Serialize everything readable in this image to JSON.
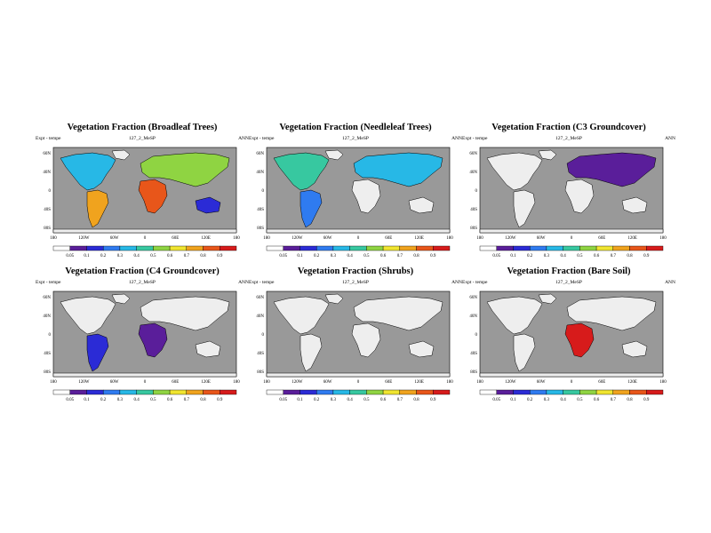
{
  "chart_data": [
    {
      "type": "heatmap",
      "title": "Vegetation Fraction (Broadleaf Trees)",
      "info_left": "Expt - tempe",
      "info_center": "127_2_MeSP",
      "info_right": "ANN",
      "lat_labels": [
        "60N",
        "40N",
        "0",
        "40S",
        "80S"
      ],
      "lon_labels": [
        "180",
        "120W",
        "60W",
        "0",
        "60E",
        "120E",
        "180"
      ],
      "colorbar_labels": [
        "0.05",
        "0.1",
        "0.2",
        "0.3",
        "0.4",
        "0.5",
        "0.6",
        "0.7",
        "0.8",
        "0.9"
      ]
    },
    {
      "type": "heatmap",
      "title": "Vegetation Fraction (Needleleaf Trees)",
      "info_left": "Expt - tempe",
      "info_center": "127_2_MeSP",
      "info_right": "ANN",
      "lat_labels": [
        "60N",
        "40N",
        "0",
        "40S",
        "80S"
      ],
      "lon_labels": [
        "180",
        "120W",
        "60W",
        "0",
        "60E",
        "120E",
        "180"
      ],
      "colorbar_labels": [
        "0.05",
        "0.1",
        "0.2",
        "0.3",
        "0.4",
        "0.5",
        "0.6",
        "0.7",
        "0.8",
        "0.9"
      ]
    },
    {
      "type": "heatmap",
      "title": "Vegetation Fraction (C3 Groundcover)",
      "info_left": "Expt - tempe",
      "info_center": "127_2_MeSP",
      "info_right": "ANN",
      "lat_labels": [
        "60N",
        "40N",
        "0",
        "40S",
        "80S"
      ],
      "lon_labels": [
        "180",
        "120W",
        "60W",
        "0",
        "60E",
        "120E",
        "180"
      ],
      "colorbar_labels": [
        "0.05",
        "0.1",
        "0.2",
        "0.3",
        "0.4",
        "0.5",
        "0.6",
        "0.7",
        "0.8",
        "0.9"
      ]
    },
    {
      "type": "heatmap",
      "title": "Vegetation Fraction (C4 Groundcover)",
      "info_left": "Expt - tempe",
      "info_center": "127_2_MeSP",
      "info_right": "ANN",
      "lat_labels": [
        "60N",
        "40N",
        "0",
        "40S",
        "80S"
      ],
      "lon_labels": [
        "180",
        "120W",
        "60W",
        "0",
        "60E",
        "120E",
        "180"
      ],
      "colorbar_labels": [
        "0.05",
        "0.1",
        "0.2",
        "0.3",
        "0.4",
        "0.5",
        "0.6",
        "0.7",
        "0.8",
        "0.9"
      ]
    },
    {
      "type": "heatmap",
      "title": "Vegetation Fraction (Shrubs)",
      "info_left": "Expt - tempe",
      "info_center": "127_2_MeSP",
      "info_right": "ANN",
      "lat_labels": [
        "60N",
        "40N",
        "0",
        "40S",
        "80S"
      ],
      "lon_labels": [
        "180",
        "120W",
        "60W",
        "0",
        "60E",
        "120E",
        "180"
      ],
      "colorbar_labels": [
        "0.05",
        "0.1",
        "0.2",
        "0.3",
        "0.4",
        "0.5",
        "0.6",
        "0.7",
        "0.8",
        "0.9"
      ]
    },
    {
      "type": "heatmap",
      "title": "Vegetation Fraction (Bare Soil)",
      "info_left": "Expt - tempe",
      "info_center": "127_2_MeSP",
      "info_right": "ANN",
      "lat_labels": [
        "60N",
        "40N",
        "0",
        "40S",
        "80S"
      ],
      "lon_labels": [
        "180",
        "120W",
        "60W",
        "0",
        "60E",
        "120E",
        "180"
      ],
      "colorbar_labels": [
        "0.05",
        "0.1",
        "0.2",
        "0.3",
        "0.4",
        "0.5",
        "0.6",
        "0.7",
        "0.8",
        "0.9"
      ]
    }
  ],
  "colors": {
    "ocean": "#999999",
    "land_empty": "#eeeeee",
    "colorbar": [
      "#ffffff",
      "#5a1e9a",
      "#2b2bd6",
      "#2f7bf0",
      "#27b8e6",
      "#37c8a0",
      "#8fd442",
      "#f0e530",
      "#f0a31e",
      "#e8561a",
      "#d71b1b"
    ]
  }
}
